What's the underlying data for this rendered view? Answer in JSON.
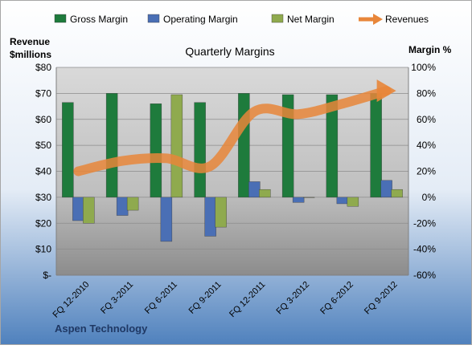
{
  "chart_data": {
    "type": "bar",
    "title": "Quarterly Margins",
    "company": "Aspen Technology",
    "y_left_label_line1": "Revenue",
    "y_left_label_line2": "$millions",
    "y_right_label": "Margin %",
    "categories": [
      "FQ 12-2010",
      "FQ 3-2011",
      "FQ 6-2011",
      "FQ 9-2011",
      "FQ 12-2011",
      "FQ 3-2012",
      "FQ 6-2012",
      "FQ 9-2012"
    ],
    "ylim_left": [
      0,
      80
    ],
    "ylim_right": [
      -60,
      100
    ],
    "left_ticks": [
      {
        "value": 0,
        "label": "$-"
      },
      {
        "value": 10,
        "label": "$10"
      },
      {
        "value": 20,
        "label": "$20"
      },
      {
        "value": 30,
        "label": "$30"
      },
      {
        "value": 40,
        "label": "$40"
      },
      {
        "value": 50,
        "label": "$50"
      },
      {
        "value": 60,
        "label": "$60"
      },
      {
        "value": 70,
        "label": "$70"
      },
      {
        "value": 80,
        "label": "$80"
      }
    ],
    "right_ticks": [
      {
        "value": -60,
        "label": "-60%"
      },
      {
        "value": -40,
        "label": "-40%"
      },
      {
        "value": -20,
        "label": "-20%"
      },
      {
        "value": 0,
        "label": "0%"
      },
      {
        "value": 20,
        "label": "20%"
      },
      {
        "value": 40,
        "label": "40%"
      },
      {
        "value": 60,
        "label": "60%"
      },
      {
        "value": 80,
        "label": "80%"
      },
      {
        "value": 100,
        "label": "100%"
      }
    ],
    "series": [
      {
        "name": "Gross Margin",
        "axis": "right",
        "kind": "bar",
        "color": "#1E7B3C",
        "values": [
          73,
          80,
          72,
          73,
          80,
          79,
          79,
          80
        ]
      },
      {
        "name": "Operating Margin",
        "axis": "right",
        "kind": "bar",
        "color": "#4A6FB5",
        "values": [
          -18,
          -14,
          -34,
          -30,
          12,
          -4,
          -5,
          13
        ]
      },
      {
        "name": "Net Margin",
        "axis": "right",
        "kind": "bar",
        "color": "#8FAA4E",
        "values": [
          -20,
          -10,
          79,
          -23,
          6,
          0,
          -7,
          6
        ]
      },
      {
        "name": "Revenues",
        "axis": "left",
        "kind": "line",
        "color": "#E8863A",
        "values": [
          40,
          44,
          45,
          42,
          63,
          62,
          66,
          71
        ]
      }
    ],
    "legend_position": "top",
    "grid": true
  }
}
